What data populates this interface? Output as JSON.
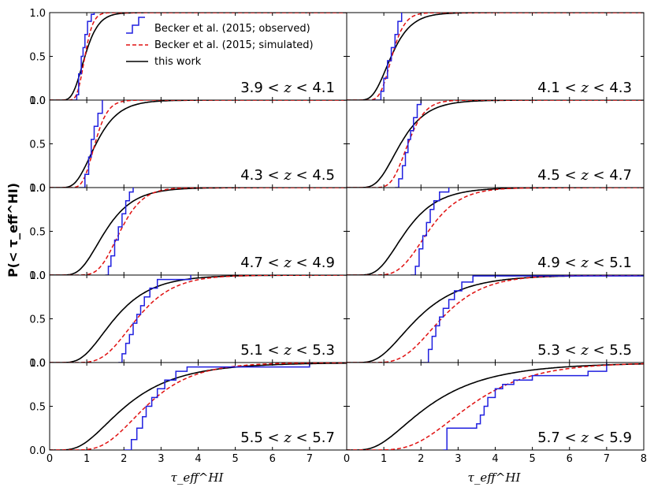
{
  "chart_data": {
    "type": "line",
    "ylabel": "P(< τ_eff^HI)",
    "xlabel": "τ_eff^HI",
    "xlim": [
      0,
      8
    ],
    "ylim": [
      0,
      1
    ],
    "x_ticks_left": [
      "0",
      "1",
      "2",
      "3",
      "4",
      "5",
      "6",
      "7"
    ],
    "x_ticks_right": [
      "0",
      "1",
      "2",
      "3",
      "4",
      "5",
      "6",
      "7",
      "8"
    ],
    "y_ticks": [
      "0.0",
      "0.5",
      "1.0"
    ],
    "legend": [
      {
        "label": "Becker et al. (2015; observed)",
        "color": "#1f1fdf",
        "style": "steps"
      },
      {
        "label": "Becker et al. (2015; simulated)",
        "color": "#e01010",
        "style": "dashed"
      },
      {
        "label": "this work",
        "color": "#000000",
        "style": "solid"
      }
    ],
    "panels": [
      {
        "z_low": "3.9",
        "z_high": "4.1",
        "this_work": {
          "mu": 0.95,
          "sigma": 0.3
        },
        "simulated": {
          "mu": 0.95,
          "sigma": 0.18
        },
        "observed": [
          [
            0.62,
            0.0
          ],
          [
            0.73,
            0.06
          ],
          [
            0.78,
            0.3
          ],
          [
            0.85,
            0.5
          ],
          [
            0.9,
            0.6
          ],
          [
            0.95,
            0.75
          ],
          [
            1.02,
            0.9
          ],
          [
            1.12,
            0.98
          ],
          [
            1.2,
            1.0
          ]
        ]
      },
      {
        "z_low": "4.1",
        "z_high": "4.3",
        "this_work": {
          "mu": 1.2,
          "sigma": 0.35
        },
        "simulated": {
          "mu": 1.22,
          "sigma": 0.22
        },
        "observed": [
          [
            0.7,
            0.0
          ],
          [
            0.92,
            0.1
          ],
          [
            1.0,
            0.25
          ],
          [
            1.1,
            0.45
          ],
          [
            1.2,
            0.6
          ],
          [
            1.3,
            0.75
          ],
          [
            1.38,
            0.9
          ],
          [
            1.48,
            1.0
          ]
        ]
      },
      {
        "z_low": "4.3",
        "z_high": "4.5",
        "this_work": {
          "mu": 1.25,
          "sigma": 0.38
        },
        "simulated": {
          "mu": 1.22,
          "sigma": 0.22
        },
        "observed": [
          [
            0.8,
            0.0
          ],
          [
            0.95,
            0.15
          ],
          [
            1.05,
            0.35
          ],
          [
            1.12,
            0.55
          ],
          [
            1.2,
            0.7
          ],
          [
            1.3,
            0.85
          ],
          [
            1.42,
            1.0
          ]
        ]
      },
      {
        "z_low": "4.5",
        "z_high": "4.7",
        "this_work": {
          "mu": 1.45,
          "sigma": 0.38
        },
        "simulated": {
          "mu": 1.65,
          "sigma": 0.22
        },
        "observed": [
          [
            1.3,
            0.0
          ],
          [
            1.4,
            0.1
          ],
          [
            1.5,
            0.25
          ],
          [
            1.58,
            0.4
          ],
          [
            1.65,
            0.55
          ],
          [
            1.72,
            0.65
          ],
          [
            1.8,
            0.8
          ],
          [
            1.9,
            0.95
          ],
          [
            2.0,
            1.0
          ]
        ]
      },
      {
        "z_low": "4.7",
        "z_high": "4.9",
        "this_work": {
          "mu": 1.5,
          "sigma": 0.4
        },
        "simulated": {
          "mu": 1.9,
          "sigma": 0.25
        },
        "observed": [
          [
            1.5,
            0.0
          ],
          [
            1.58,
            0.1
          ],
          [
            1.65,
            0.22
          ],
          [
            1.75,
            0.4
          ],
          [
            1.85,
            0.55
          ],
          [
            1.95,
            0.7
          ],
          [
            2.05,
            0.85
          ],
          [
            2.15,
            0.95
          ],
          [
            2.25,
            1.0
          ]
        ]
      },
      {
        "z_low": "4.9",
        "z_high": "5.1",
        "this_work": {
          "mu": 1.6,
          "sigma": 0.42
        },
        "simulated": {
          "mu": 2.2,
          "sigma": 0.3
        },
        "observed": [
          [
            1.72,
            0.0
          ],
          [
            1.85,
            0.1
          ],
          [
            1.95,
            0.3
          ],
          [
            2.05,
            0.45
          ],
          [
            2.15,
            0.6
          ],
          [
            2.25,
            0.75
          ],
          [
            2.35,
            0.85
          ],
          [
            2.5,
            0.95
          ],
          [
            2.75,
            1.0
          ]
        ]
      },
      {
        "z_low": "5.1",
        "z_high": "5.3",
        "this_work": {
          "mu": 1.75,
          "sigma": 0.45
        },
        "simulated": {
          "mu": 2.35,
          "sigma": 0.33
        },
        "observed": [
          [
            1.85,
            0.0
          ],
          [
            1.95,
            0.1
          ],
          [
            2.05,
            0.22
          ],
          [
            2.15,
            0.32
          ],
          [
            2.25,
            0.45
          ],
          [
            2.35,
            0.55
          ],
          [
            2.45,
            0.65
          ],
          [
            2.55,
            0.75
          ],
          [
            2.7,
            0.85
          ],
          [
            2.9,
            0.95
          ],
          [
            3.8,
            1.0
          ]
        ]
      },
      {
        "z_low": "5.3",
        "z_high": "5.5",
        "this_work": {
          "mu": 1.9,
          "sigma": 0.5
        },
        "simulated": {
          "mu": 2.55,
          "sigma": 0.35
        },
        "observed": [
          [
            2.0,
            0.0
          ],
          [
            2.2,
            0.15
          ],
          [
            2.3,
            0.3
          ],
          [
            2.4,
            0.42
          ],
          [
            2.5,
            0.52
          ],
          [
            2.6,
            0.62
          ],
          [
            2.75,
            0.72
          ],
          [
            2.9,
            0.82
          ],
          [
            3.1,
            0.92
          ],
          [
            3.4,
            0.99
          ],
          [
            8.0,
            1.0
          ]
        ]
      },
      {
        "z_low": "5.5",
        "z_high": "5.7",
        "this_work": {
          "mu": 2.05,
          "sigma": 0.55
        },
        "simulated": {
          "mu": 2.6,
          "sigma": 0.38
        },
        "observed": [
          [
            2.0,
            0.0
          ],
          [
            2.2,
            0.12
          ],
          [
            2.35,
            0.25
          ],
          [
            2.5,
            0.38
          ],
          [
            2.6,
            0.5
          ],
          [
            2.75,
            0.6
          ],
          [
            2.9,
            0.7
          ],
          [
            3.1,
            0.8
          ],
          [
            3.4,
            0.9
          ],
          [
            3.7,
            0.95
          ],
          [
            7.0,
            1.0
          ]
        ]
      },
      {
        "z_low": "5.7",
        "z_high": "5.9",
        "this_work": {
          "mu": 2.2,
          "sigma": 0.6
        },
        "simulated": {
          "mu": 3.3,
          "sigma": 0.4
        },
        "observed": [
          [
            2.6,
            0.0
          ],
          [
            2.7,
            0.25
          ],
          [
            3.5,
            0.3
          ],
          [
            3.6,
            0.4
          ],
          [
            3.7,
            0.5
          ],
          [
            3.8,
            0.6
          ],
          [
            4.0,
            0.7
          ],
          [
            4.2,
            0.75
          ],
          [
            4.5,
            0.8
          ],
          [
            5.0,
            0.85
          ],
          [
            6.5,
            0.9
          ],
          [
            7.0,
            1.0
          ]
        ]
      }
    ]
  }
}
